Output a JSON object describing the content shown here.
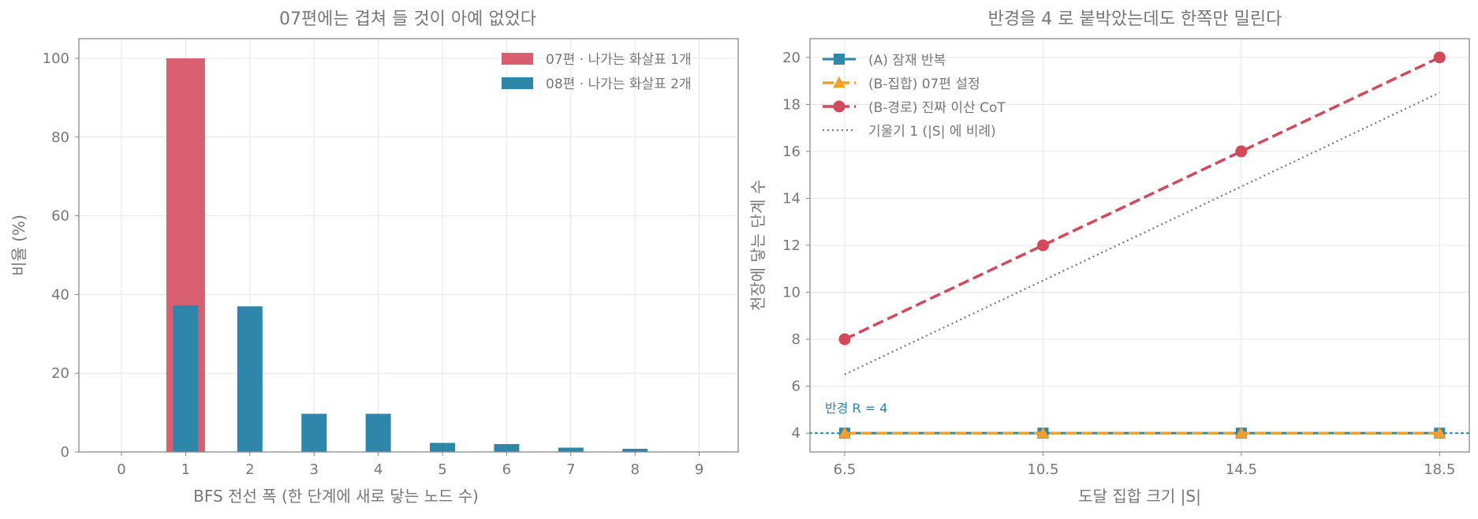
{
  "chart_data": [
    {
      "type": "bar",
      "title": "07편에는 겹쳐 들 것이 아예 없었다",
      "xlabel": "BFS 전선 폭 (한 단계에 새로 닿는 노드 수)",
      "ylabel": "비율 (%)",
      "categories": [
        "0",
        "1",
        "2",
        "3",
        "4",
        "5",
        "6",
        "7",
        "8",
        "9"
      ],
      "ylim": [
        0,
        105
      ],
      "yticks": [
        "0",
        "20",
        "40",
        "60",
        "80",
        "100"
      ],
      "grid": true,
      "legend_position": "top-right",
      "series": [
        {
          "name": "07편 · 나가는 화살표 1개",
          "color": "#d75f70",
          "values": [
            0,
            100,
            0,
            0,
            0,
            0,
            0,
            0,
            0,
            0
          ]
        },
        {
          "name": "08편 · 나가는 화살표 2개",
          "color": "#2e86ab",
          "values": [
            0,
            37.2,
            37,
            9.7,
            9.7,
            2.3,
            2.0,
            1.1,
            0.8,
            0
          ]
        }
      ]
    },
    {
      "type": "line",
      "title": "반경을 4 로 붙박았는데도 한쪽만 밀린다",
      "xlabel": "도달 집합 크기 |S|",
      "ylabel": "천장에 닿는 단계 수",
      "x": [
        6.5,
        10.5,
        14.5,
        18.5
      ],
      "xticks": [
        "6.5",
        "10.5",
        "14.5",
        "18.5"
      ],
      "xlim": [
        5.8,
        19.1
      ],
      "ylim": [
        3.2,
        20.8
      ],
      "yticks": [
        "4",
        "6",
        "8",
        "10",
        "12",
        "14",
        "16",
        "18",
        "20"
      ],
      "grid": true,
      "legend_position": "top-left",
      "series": [
        {
          "name": "(A) 잠재 반복",
          "color": "#2e86ab",
          "marker": "square",
          "style": "solid",
          "values": [
            4,
            4,
            4,
            4
          ]
        },
        {
          "name": "(B-집합) 07편 설정",
          "color": "#f0a030",
          "marker": "triangle",
          "style": "dashed",
          "values": [
            4,
            4,
            4,
            4
          ]
        },
        {
          "name": "(B-경로) 진짜 이산 CoT",
          "color": "#d1495b",
          "marker": "circle",
          "style": "dashed",
          "values": [
            8,
            12,
            16,
            20
          ]
        },
        {
          "name": "기울기 1 (|S| 에 비례)",
          "color": "#777777",
          "marker": "none",
          "style": "dotted",
          "values": [
            6.5,
            10.5,
            14.5,
            18.5
          ]
        }
      ],
      "reference_line": {
        "y": 4,
        "label": "반경 R = 4",
        "color": "#2e86ab"
      }
    }
  ]
}
